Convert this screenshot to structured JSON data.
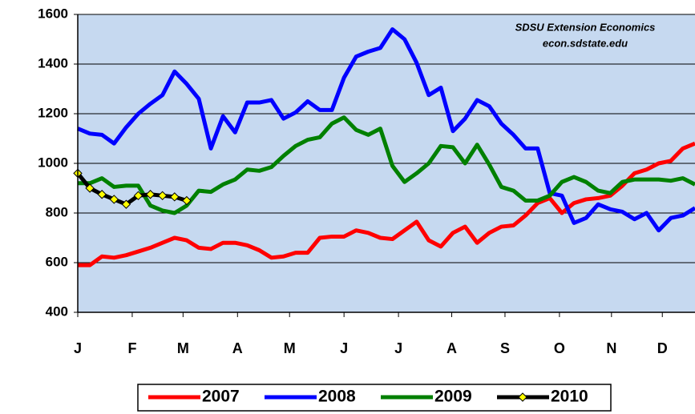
{
  "chart_data": {
    "type": "line",
    "annotations": [
      "SDSU Extension  Economics",
      "econ.sdstate.edu"
    ],
    "x": [
      0,
      1,
      2,
      3,
      4,
      5,
      6,
      7,
      8,
      9,
      10,
      11,
      12,
      13,
      14,
      15,
      16,
      17,
      18,
      19,
      20,
      21,
      22,
      23,
      24,
      25,
      26,
      27,
      28,
      29,
      30,
      31,
      32,
      33,
      34,
      35,
      36,
      37,
      38,
      39,
      40,
      41,
      42,
      43,
      44,
      45,
      46,
      47,
      48,
      49,
      50,
      51
    ],
    "xlim": [
      0,
      51
    ],
    "xticks": [
      {
        "value": 0,
        "label": "J"
      },
      {
        "value": 4.5,
        "label": "F"
      },
      {
        "value": 8.7,
        "label": "M"
      },
      {
        "value": 13.2,
        "label": "A"
      },
      {
        "value": 17.5,
        "label": "M"
      },
      {
        "value": 22,
        "label": "J"
      },
      {
        "value": 26.5,
        "label": "J"
      },
      {
        "value": 30.9,
        "label": "A"
      },
      {
        "value": 35.3,
        "label": "S"
      },
      {
        "value": 39.8,
        "label": "O"
      },
      {
        "value": 44.1,
        "label": "N"
      },
      {
        "value": 48.3,
        "label": "D"
      }
    ],
    "ylim": [
      400,
      1600
    ],
    "yticks": [
      400,
      600,
      800,
      1000,
      1200,
      1400,
      1600
    ],
    "grid": true,
    "background": "#c6d9f0",
    "legend": "bottom",
    "series": [
      {
        "name": "2007",
        "color": "#ff0000",
        "values": [
          590,
          590,
          625,
          620,
          630,
          645,
          660,
          680,
          700,
          690,
          660,
          655,
          680,
          680,
          670,
          650,
          620,
          625,
          640,
          640,
          700,
          705,
          705,
          730,
          720,
          700,
          695,
          730,
          765,
          690,
          665,
          720,
          745,
          680,
          720,
          745,
          750,
          790,
          840,
          860,
          800,
          840,
          855,
          860,
          870,
          910,
          960,
          975,
          1000,
          1010,
          1060,
          1080
        ]
      },
      {
        "name": "2008",
        "color": "#0000ff",
        "values": [
          1140,
          1120,
          1115,
          1080,
          1145,
          1200,
          1240,
          1275,
          1370,
          1320,
          1260,
          1060,
          1190,
          1125,
          1245,
          1245,
          1255,
          1180,
          1205,
          1250,
          1215,
          1215,
          1345,
          1430,
          1450,
          1465,
          1540,
          1500,
          1405,
          1275,
          1305,
          1130,
          1180,
          1255,
          1230,
          1160,
          1115,
          1060,
          1060,
          880,
          870,
          760,
          780,
          835,
          815,
          805,
          775,
          800,
          730,
          780,
          790,
          820
        ]
      },
      {
        "name": "2009",
        "color": "#008000",
        "values": [
          920,
          920,
          940,
          905,
          910,
          910,
          830,
          810,
          800,
          830,
          890,
          885,
          915,
          935,
          975,
          970,
          985,
          1030,
          1070,
          1095,
          1105,
          1160,
          1185,
          1135,
          1115,
          1140,
          990,
          925,
          960,
          1000,
          1070,
          1065,
          1000,
          1075,
          995,
          905,
          890,
          850,
          850,
          870,
          925,
          945,
          925,
          890,
          880,
          925,
          935,
          935,
          935,
          930,
          940,
          915
        ]
      },
      {
        "name": "2010",
        "color": "#000000",
        "marker": "diamond",
        "marker_color": "#ffff00",
        "values": [
          960,
          900,
          875,
          855,
          835,
          870,
          875,
          870,
          865,
          850,
          null,
          null,
          null,
          null,
          null,
          null,
          null,
          null,
          null,
          null,
          null,
          null,
          null,
          null,
          null,
          null,
          null,
          null,
          null,
          null,
          null,
          null,
          null,
          null,
          null,
          null,
          null,
          null,
          null,
          null,
          null,
          null,
          null,
          null,
          null,
          null,
          null,
          null,
          null,
          null,
          null,
          null
        ]
      }
    ]
  }
}
